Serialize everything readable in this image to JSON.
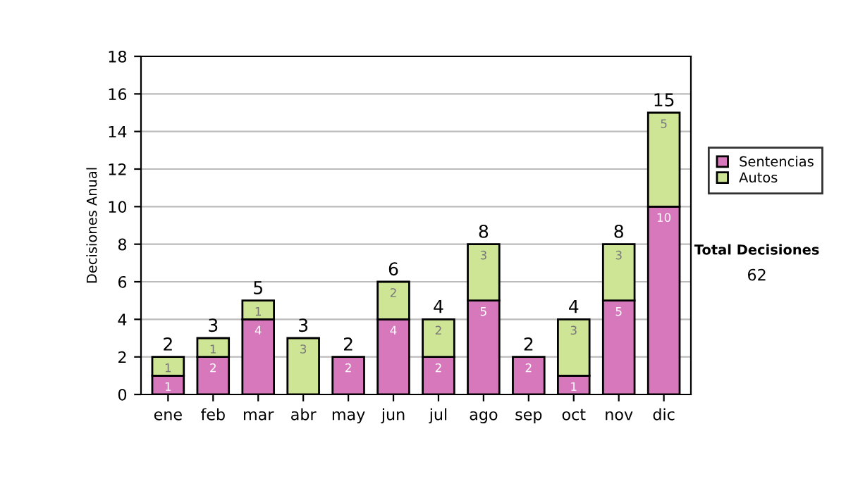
{
  "chart_data": {
    "type": "bar",
    "stacked": true,
    "ylabel": "Decisiones Anual",
    "categories": [
      "ene",
      "feb",
      "mar",
      "abr",
      "may",
      "jun",
      "jul",
      "ago",
      "sep",
      "oct",
      "nov",
      "dic"
    ],
    "series": [
      {
        "name": "Sentencias",
        "color": "#d878bc",
        "values": [
          1,
          2,
          4,
          0,
          2,
          4,
          2,
          5,
          2,
          1,
          5,
          10
        ],
        "value_labels": [
          "1",
          "2",
          "4",
          null,
          "2",
          "4",
          "2",
          "5",
          "2",
          "1",
          "5",
          "10"
        ]
      },
      {
        "name": "Autos",
        "color": "#cde594",
        "values": [
          1,
          1,
          1,
          3,
          0,
          2,
          2,
          3,
          0,
          3,
          3,
          5
        ],
        "value_labels": [
          "1",
          "1",
          "1",
          "3",
          null,
          "2",
          "2",
          "3",
          null,
          "3",
          "3",
          "5"
        ]
      }
    ],
    "totals": [
      "2",
      "3",
      "5",
      "3",
      "2",
      "6",
      "4",
      "8",
      "2",
      "4",
      "8",
      "15"
    ],
    "ylim": [
      0,
      18
    ],
    "yticks": [
      0,
      2,
      4,
      6,
      8,
      10,
      12,
      14,
      16,
      18
    ],
    "grid": "y",
    "legend": "right",
    "annotations": [
      "Total Decisiones",
      "62"
    ]
  }
}
